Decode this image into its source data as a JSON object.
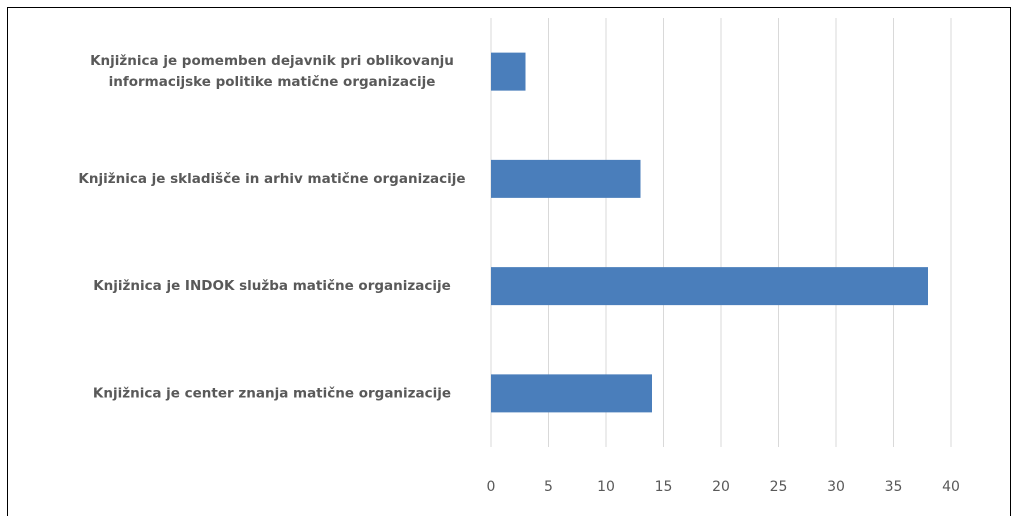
{
  "chart_data": {
    "type": "barh",
    "categories": [
      "Knjižnica je pomemben dejavnik pri oblikovanju informacijske politike matične organizacije",
      "Knjižnica je skladišče in arhiv matične organizacije",
      "Knjižnica je INDOK služba matične organizacije",
      "Knjižnica je center znanja matične organizacije"
    ],
    "values": [
      3,
      13,
      38,
      14
    ],
    "color": "#4a7ebb",
    "xlim": [
      0,
      40
    ],
    "xticks": [
      0,
      5,
      10,
      15,
      20,
      25,
      30,
      35,
      40
    ],
    "grid": true
  }
}
